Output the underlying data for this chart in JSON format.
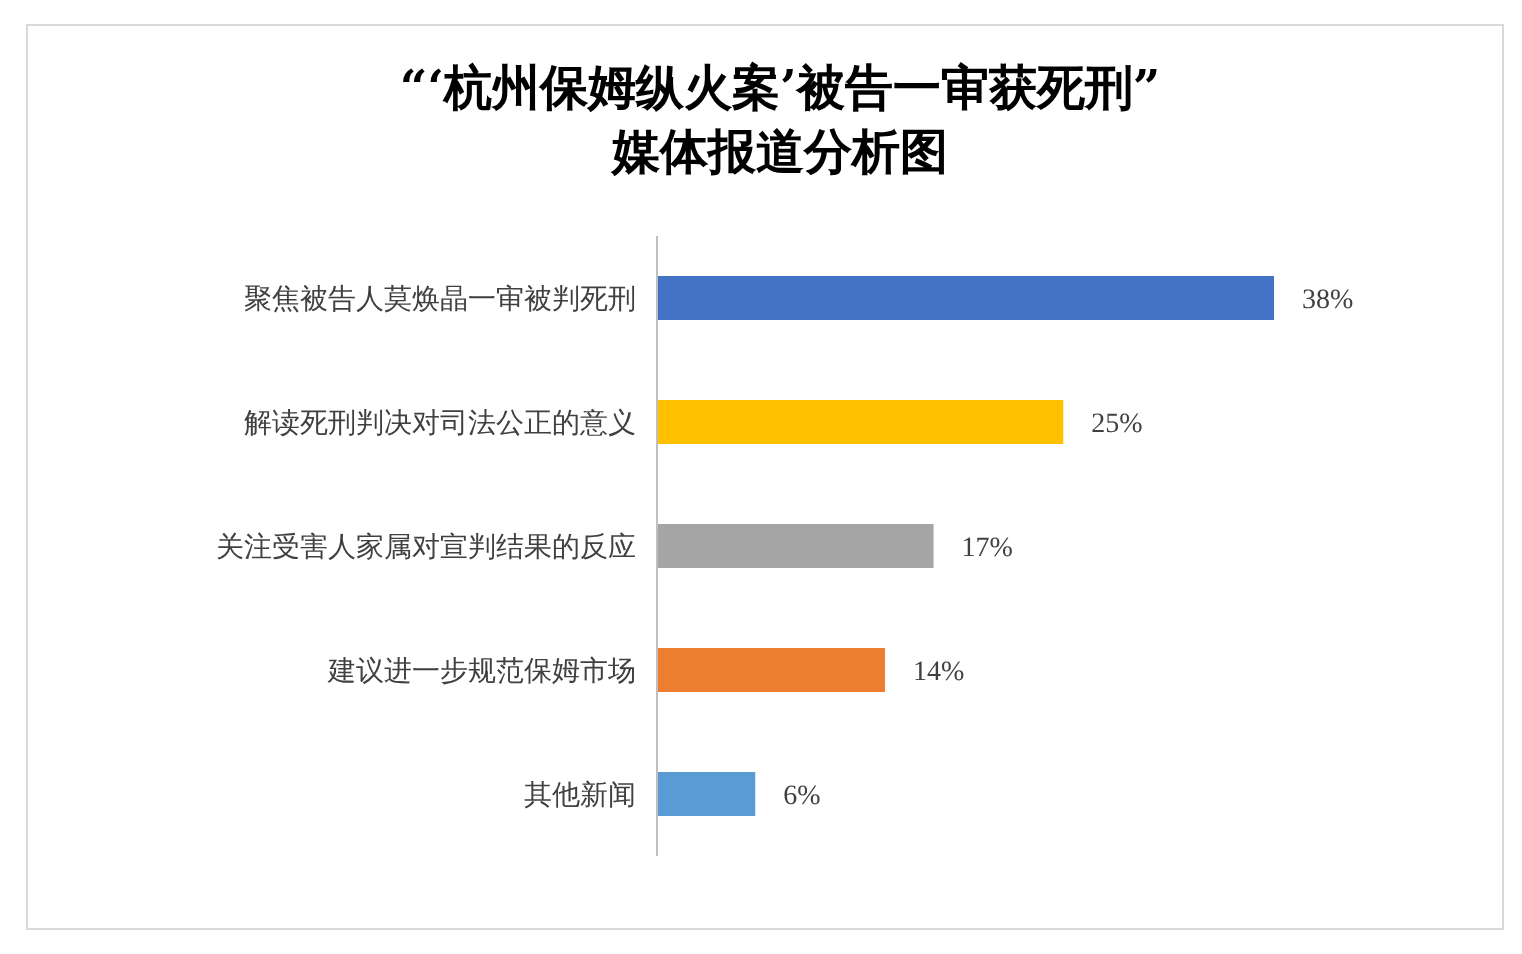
{
  "chart_data": {
    "type": "bar",
    "orientation": "horizontal",
    "title": "“‘杭州保姆纵火案’被告一审获死刑”\n媒体报道分析图",
    "categories": [
      "聚焦被告人莫焕晶一审被判死刑",
      "解读死刑判决对司法公正的意义",
      "关注受害人家属对宣判结果的反应",
      "建议进一步规范保姆市场",
      "其他新闻"
    ],
    "values": [
      38,
      25,
      17,
      14,
      6
    ],
    "colors": [
      "#4472c4",
      "#ffc000",
      "#a5a5a5",
      "#ed7d31",
      "#5b9bd5"
    ],
    "value_labels": [
      "38%",
      "25%",
      "17%",
      "14%",
      "6%"
    ]
  }
}
